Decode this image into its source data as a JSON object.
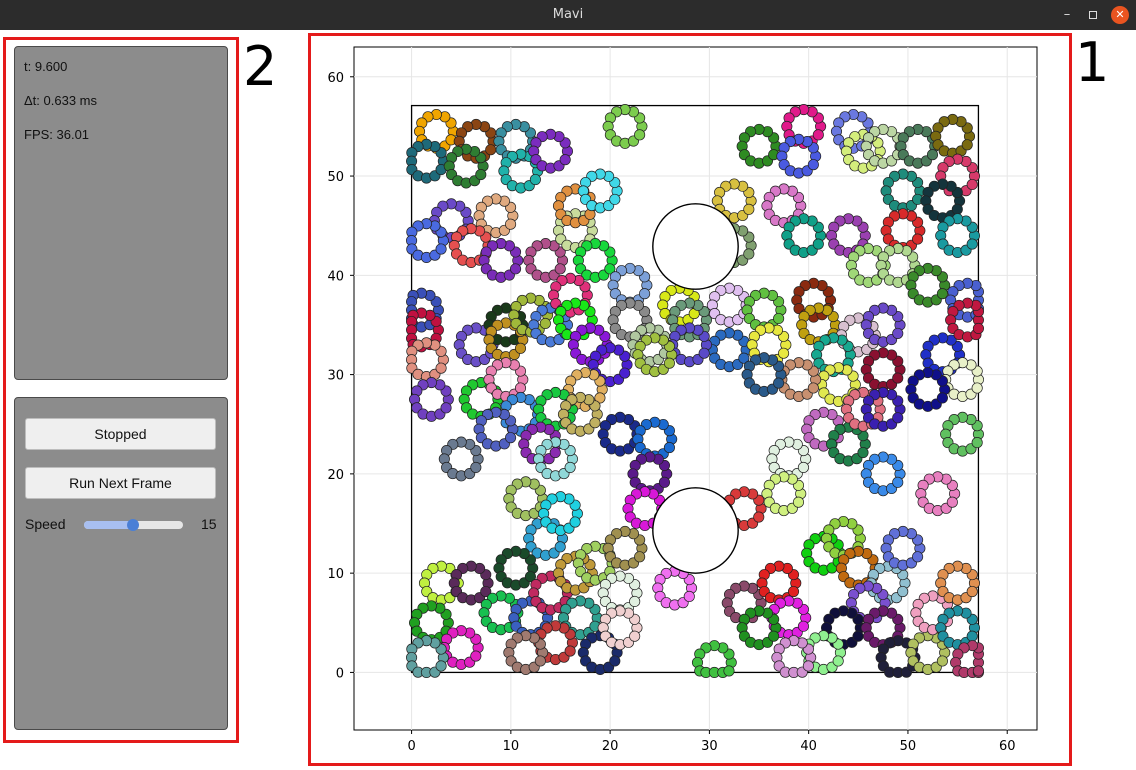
{
  "window": {
    "title": "Mavi",
    "minimize": "–",
    "close": "✕"
  },
  "annotations": {
    "plot_label": "1",
    "panel_label": "2"
  },
  "info": {
    "time": "t: 9.600",
    "timestep": "Δt: 0.633 ms",
    "fps": "FPS: 36.01"
  },
  "controls": {
    "run_state_button": "Stopped",
    "next_frame_button": "Run Next Frame",
    "speed_label": "Speed",
    "speed_value": "15",
    "speed_fraction": 0.49
  },
  "colors": {
    "annotation": "#e41a1a",
    "panel": "#8c8c8c",
    "slider_accent": "#4a7fd6"
  },
  "chart_data": {
    "type": "scatter",
    "title": "",
    "xlabel": "",
    "ylabel": "",
    "xlim": [
      -5.8,
      63
    ],
    "ylim": [
      -5.8,
      63
    ],
    "x_ticks": [
      "0",
      "10",
      "20",
      "30",
      "40",
      "50",
      "60"
    ],
    "y_ticks": [
      "0",
      "10",
      "20",
      "30",
      "40",
      "50",
      "60"
    ],
    "grid": true,
    "container": {
      "x_min": 0,
      "x_max": 57.1,
      "y_min": 0,
      "y_max": 57.1
    },
    "obstacles": [
      {
        "cx": 28.6,
        "cy": 42.9,
        "r": 4.3
      },
      {
        "cx": 28.6,
        "cy": 14.3,
        "r": 4.3
      }
    ],
    "cells": [
      {
        "x": 2.5,
        "y": 54.5,
        "c": "#f0a500"
      },
      {
        "x": 6.5,
        "y": 53.5,
        "c": "#8b4513"
      },
      {
        "x": 1.5,
        "y": 51.5,
        "c": "#1e6a7a"
      },
      {
        "x": 5.5,
        "y": 51.0,
        "c": "#2e7d32"
      },
      {
        "x": 10.5,
        "y": 53.5,
        "c": "#3a8fa0"
      },
      {
        "x": 11.0,
        "y": 50.5,
        "c": "#20b2aa"
      },
      {
        "x": 14.0,
        "y": 52.5,
        "c": "#7b2cbf"
      },
      {
        "x": 21.5,
        "y": 55.0,
        "c": "#7ccc4e"
      },
      {
        "x": 35.0,
        "y": 53.0,
        "c": "#2e8b22"
      },
      {
        "x": 39.5,
        "y": 55.0,
        "c": "#e01a8a"
      },
      {
        "x": 39.0,
        "y": 52.0,
        "c": "#4a5ae0"
      },
      {
        "x": 44.5,
        "y": 54.5,
        "c": "#6a78e0"
      },
      {
        "x": 45.5,
        "y": 52.5,
        "c": "#d4ee7c"
      },
      {
        "x": 47.5,
        "y": 53.0,
        "c": "#bcd6a4"
      },
      {
        "x": 51.0,
        "y": 53.0,
        "c": "#4a7a5a"
      },
      {
        "x": 54.5,
        "y": 54.0,
        "c": "#7a6a10"
      },
      {
        "x": 55.0,
        "y": 50.0,
        "c": "#d63a6a"
      },
      {
        "x": 49.5,
        "y": 48.5,
        "c": "#1e8c7c"
      },
      {
        "x": 53.5,
        "y": 47.5,
        "c": "#14343c"
      },
      {
        "x": 49.5,
        "y": 44.5,
        "c": "#d82a2a"
      },
      {
        "x": 4.0,
        "y": 45.5,
        "c": "#6a4ac8"
      },
      {
        "x": 8.5,
        "y": 46.0,
        "c": "#e0aa80"
      },
      {
        "x": 1.5,
        "y": 43.5,
        "c": "#4a6ae0"
      },
      {
        "x": 6.0,
        "y": 43.0,
        "c": "#e65050"
      },
      {
        "x": 9.0,
        "y": 41.5,
        "c": "#7a2cb8"
      },
      {
        "x": 13.5,
        "y": 41.5,
        "c": "#b0508a"
      },
      {
        "x": 16.5,
        "y": 44.5,
        "c": "#c8dc9c"
      },
      {
        "x": 16.5,
        "y": 47.0,
        "c": "#e09040"
      },
      {
        "x": 19.0,
        "y": 48.5,
        "c": "#40d8e8"
      },
      {
        "x": 18.5,
        "y": 41.5,
        "c": "#18d83c"
      },
      {
        "x": 22.0,
        "y": 39.0,
        "c": "#7ca0d8"
      },
      {
        "x": 32.5,
        "y": 47.5,
        "c": "#d8c040"
      },
      {
        "x": 37.5,
        "y": 47.0,
        "c": "#d878c8"
      },
      {
        "x": 32.5,
        "y": 43.0,
        "c": "#80a070"
      },
      {
        "x": 39.5,
        "y": 44.0,
        "c": "#10a088"
      },
      {
        "x": 44.0,
        "y": 44.0,
        "c": "#9a40b0"
      },
      {
        "x": 46.0,
        "y": 41.0,
        "c": "#a0d878"
      },
      {
        "x": 49.0,
        "y": 41.0,
        "c": "#b0d890"
      },
      {
        "x": 52.0,
        "y": 39.0,
        "c": "#3a8a2a"
      },
      {
        "x": 55.0,
        "y": 44.0,
        "c": "#1a9aa0"
      },
      {
        "x": 56.0,
        "y": 37.5,
        "c": "#4a60d0"
      },
      {
        "x": 1.0,
        "y": 36.5,
        "c": "#3a50b8"
      },
      {
        "x": 1.0,
        "y": 34.5,
        "c": "#c01040"
      },
      {
        "x": 1.5,
        "y": 31.5,
        "c": "#e09080"
      },
      {
        "x": 2.0,
        "y": 27.5,
        "c": "#7040c0"
      },
      {
        "x": 6.5,
        "y": 33.0,
        "c": "#6a50c8"
      },
      {
        "x": 9.5,
        "y": 35.0,
        "c": "#1a3a1a"
      },
      {
        "x": 9.5,
        "y": 33.5,
        "c": "#c09020"
      },
      {
        "x": 12.0,
        "y": 36.0,
        "c": "#a0b83a"
      },
      {
        "x": 14.0,
        "y": 35.0,
        "c": "#4a7ad8"
      },
      {
        "x": 16.0,
        "y": 38.0,
        "c": "#e0307a"
      },
      {
        "x": 16.5,
        "y": 35.5,
        "c": "#18e818"
      },
      {
        "x": 18.0,
        "y": 33.0,
        "c": "#8a18d8"
      },
      {
        "x": 20.0,
        "y": 31.0,
        "c": "#4a20d0"
      },
      {
        "x": 22.0,
        "y": 35.5,
        "c": "#8a8a8a"
      },
      {
        "x": 24.0,
        "y": 33.0,
        "c": "#b0c8a0"
      },
      {
        "x": 27.0,
        "y": 37.0,
        "c": "#d8e818"
      },
      {
        "x": 28.0,
        "y": 35.5,
        "c": "#6a9a7a"
      },
      {
        "x": 32.0,
        "y": 37.0,
        "c": "#e0c0f0"
      },
      {
        "x": 35.5,
        "y": 36.5,
        "c": "#60c040"
      },
      {
        "x": 32.0,
        "y": 32.5,
        "c": "#2a6ac0"
      },
      {
        "x": 36.0,
        "y": 33.0,
        "c": "#e8e840"
      },
      {
        "x": 40.5,
        "y": 37.5,
        "c": "#8a2a10"
      },
      {
        "x": 41.0,
        "y": 35.0,
        "c": "#c0a010"
      },
      {
        "x": 45.0,
        "y": 34.0,
        "c": "#d8c0d0"
      },
      {
        "x": 47.5,
        "y": 35.0,
        "c": "#6a4ac8"
      },
      {
        "x": 42.5,
        "y": 32.0,
        "c": "#18a890"
      },
      {
        "x": 47.5,
        "y": 30.5,
        "c": "#8a1030"
      },
      {
        "x": 53.5,
        "y": 32.0,
        "c": "#2030c8"
      },
      {
        "x": 55.5,
        "y": 29.5,
        "c": "#e8f0c8"
      },
      {
        "x": 52.0,
        "y": 28.5,
        "c": "#10108a"
      },
      {
        "x": 56.0,
        "y": 35.5,
        "c": "#c01840"
      },
      {
        "x": 43.0,
        "y": 29.0,
        "c": "#e0e850"
      },
      {
        "x": 39.0,
        "y": 29.5,
        "c": "#c89070"
      },
      {
        "x": 35.5,
        "y": 30.0,
        "c": "#2a5a8a"
      },
      {
        "x": 28.0,
        "y": 33.0,
        "c": "#5a4ac8"
      },
      {
        "x": 24.5,
        "y": 32.0,
        "c": "#a0c040"
      },
      {
        "x": 17.5,
        "y": 28.5,
        "c": "#e0b060"
      },
      {
        "x": 7.0,
        "y": 27.5,
        "c": "#20c830"
      },
      {
        "x": 9.5,
        "y": 29.5,
        "c": "#e880b0"
      },
      {
        "x": 11.0,
        "y": 26.0,
        "c": "#3a8ad8"
      },
      {
        "x": 14.5,
        "y": 26.5,
        "c": "#18c840"
      },
      {
        "x": 17.0,
        "y": 26.0,
        "c": "#c0b060"
      },
      {
        "x": 13.0,
        "y": 23.0,
        "c": "#8a2ab0"
      },
      {
        "x": 8.5,
        "y": 24.5,
        "c": "#5060c0"
      },
      {
        "x": 5.0,
        "y": 21.5,
        "c": "#6a7a90"
      },
      {
        "x": 14.5,
        "y": 21.5,
        "c": "#90d8d8"
      },
      {
        "x": 21.0,
        "y": 24.0,
        "c": "#1a2a8a"
      },
      {
        "x": 24.5,
        "y": 23.5,
        "c": "#1a6ad0"
      },
      {
        "x": 24.0,
        "y": 20.0,
        "c": "#5a1a8a"
      },
      {
        "x": 23.5,
        "y": 16.5,
        "c": "#d818d8"
      },
      {
        "x": 33.5,
        "y": 16.5,
        "c": "#d83a3a"
      },
      {
        "x": 38.0,
        "y": 21.5,
        "c": "#e0f0e0"
      },
      {
        "x": 37.5,
        "y": 18.0,
        "c": "#d0f080"
      },
      {
        "x": 41.5,
        "y": 24.5,
        "c": "#c06ac0"
      },
      {
        "x": 44.0,
        "y": 23.0,
        "c": "#20804a"
      },
      {
        "x": 45.5,
        "y": 26.5,
        "c": "#e07080"
      },
      {
        "x": 47.5,
        "y": 26.5,
        "c": "#3a20b0"
      },
      {
        "x": 47.5,
        "y": 20.0,
        "c": "#3a8ae8"
      },
      {
        "x": 55.5,
        "y": 24.0,
        "c": "#60c060"
      },
      {
        "x": 53.0,
        "y": 18.0,
        "c": "#e880c0"
      },
      {
        "x": 11.5,
        "y": 17.5,
        "c": "#a0c060"
      },
      {
        "x": 13.5,
        "y": 13.5,
        "c": "#30a0d0"
      },
      {
        "x": 15.0,
        "y": 16.0,
        "c": "#20d0e0"
      },
      {
        "x": 10.5,
        "y": 10.5,
        "c": "#1a4a2a"
      },
      {
        "x": 3.0,
        "y": 9.0,
        "c": "#c0f040"
      },
      {
        "x": 6.0,
        "y": 9.0,
        "c": "#5a2a5a"
      },
      {
        "x": 2.0,
        "y": 5.0,
        "c": "#20a020"
      },
      {
        "x": 5.0,
        "y": 2.5,
        "c": "#e020c0"
      },
      {
        "x": 1.5,
        "y": 1.5,
        "c": "#60a0a0"
      },
      {
        "x": 9.0,
        "y": 6.0,
        "c": "#18c050"
      },
      {
        "x": 12.0,
        "y": 5.5,
        "c": "#3a60c0"
      },
      {
        "x": 14.0,
        "y": 8.0,
        "c": "#c02a60"
      },
      {
        "x": 16.5,
        "y": 10.0,
        "c": "#c09a3a"
      },
      {
        "x": 18.5,
        "y": 11.0,
        "c": "#a0d060"
      },
      {
        "x": 21.5,
        "y": 12.5,
        "c": "#a09050"
      },
      {
        "x": 21.0,
        "y": 8.0,
        "c": "#e0f0e0"
      },
      {
        "x": 17.0,
        "y": 5.5,
        "c": "#30a090"
      },
      {
        "x": 14.5,
        "y": 3.0,
        "c": "#c03a3a"
      },
      {
        "x": 11.5,
        "y": 2.0,
        "c": "#a07a70"
      },
      {
        "x": 19.0,
        "y": 2.0,
        "c": "#1a2a6a"
      },
      {
        "x": 21.0,
        "y": 4.5,
        "c": "#f0d0d0"
      },
      {
        "x": 26.5,
        "y": 8.5,
        "c": "#f070f0"
      },
      {
        "x": 30.5,
        "y": 1.0,
        "c": "#40c040"
      },
      {
        "x": 33.5,
        "y": 7.0,
        "c": "#8a4a6a"
      },
      {
        "x": 37.0,
        "y": 9.0,
        "c": "#e02020"
      },
      {
        "x": 38.0,
        "y": 5.5,
        "c": "#e020e0"
      },
      {
        "x": 35.0,
        "y": 4.5,
        "c": "#209020"
      },
      {
        "x": 41.5,
        "y": 12.0,
        "c": "#10d010"
      },
      {
        "x": 43.5,
        "y": 13.5,
        "c": "#90d040"
      },
      {
        "x": 45.0,
        "y": 10.5,
        "c": "#c06a10"
      },
      {
        "x": 48.0,
        "y": 9.0,
        "c": "#90c0d0"
      },
      {
        "x": 49.5,
        "y": 12.5,
        "c": "#6070d8"
      },
      {
        "x": 46.0,
        "y": 7.0,
        "c": "#7a50d0"
      },
      {
        "x": 43.5,
        "y": 4.5,
        "c": "#10103a"
      },
      {
        "x": 47.5,
        "y": 4.5,
        "c": "#6a1a6a"
      },
      {
        "x": 41.5,
        "y": 2.0,
        "c": "#90f090"
      },
      {
        "x": 38.5,
        "y": 1.5,
        "c": "#d090d0"
      },
      {
        "x": 49.0,
        "y": 1.5,
        "c": "#20203a"
      },
      {
        "x": 52.0,
        "y": 2.0,
        "c": "#b0c060"
      },
      {
        "x": 52.5,
        "y": 6.0,
        "c": "#f0a0c0"
      },
      {
        "x": 55.0,
        "y": 4.5,
        "c": "#2090a0"
      },
      {
        "x": 55.0,
        "y": 9.0,
        "c": "#e09050"
      },
      {
        "x": 56.5,
        "y": 1.0,
        "c": "#b03a6a"
      }
    ]
  }
}
